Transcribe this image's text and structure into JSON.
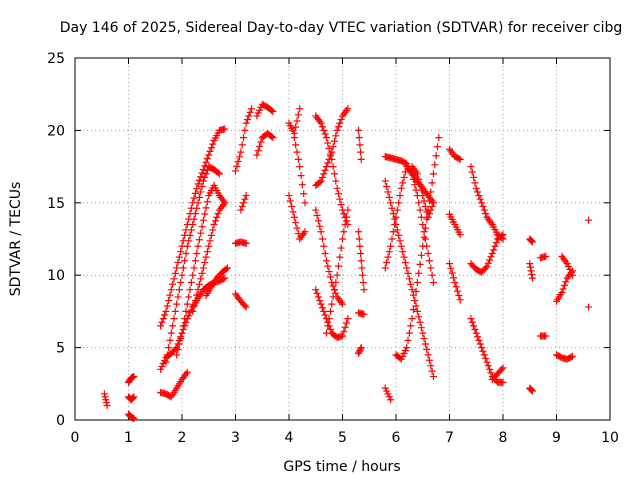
{
  "chart_data": {
    "type": "scatter",
    "title": "Day 146 of 2025, Sidereal Day-to-day VTEC variation (SDTVAR) for receiver cibg",
    "xlabel": "GPS time / hours",
    "ylabel": "SDTVAR / TECUs",
    "xlim": [
      0,
      10
    ],
    "ylim": [
      0,
      25
    ],
    "xticks": [
      0,
      1,
      2,
      3,
      4,
      5,
      6,
      7,
      8,
      9,
      10
    ],
    "yticks": [
      0,
      5,
      10,
      15,
      20,
      25
    ],
    "grid": true,
    "marker": "+",
    "color": "#ff0000",
    "series": [
      {
        "name": "s01",
        "x": [
          0.55,
          0.6
        ],
        "y": [
          1.8,
          1.0
        ]
      },
      {
        "name": "s02",
        "x": [
          1.0,
          1.05,
          1.1
        ],
        "y": [
          2.6,
          2.9,
          3.0
        ]
      },
      {
        "name": "s03",
        "x": [
          1.0,
          1.05,
          1.1
        ],
        "y": [
          1.6,
          1.4,
          1.6
        ]
      },
      {
        "name": "s04",
        "x": [
          1.0,
          1.05,
          1.1
        ],
        "y": [
          0.4,
          0.2,
          0.1
        ]
      },
      {
        "name": "s05",
        "x": [
          1.6,
          1.7,
          1.8,
          1.9,
          2.0,
          2.1
        ],
        "y": [
          1.9,
          1.8,
          1.6,
          2.2,
          2.8,
          3.3
        ]
      },
      {
        "name": "s06",
        "x": [
          1.6,
          1.7,
          1.8,
          1.9,
          2.0,
          2.1,
          2.2,
          2.3,
          2.4,
          2.5,
          2.6,
          2.7,
          2.8
        ],
        "y": [
          3.5,
          4.3,
          4.6,
          5.0,
          6.0,
          7.0,
          7.8,
          8.4,
          9.0,
          9.3,
          9.5,
          9.6,
          9.8
        ]
      },
      {
        "name": "s07",
        "x": [
          1.6,
          1.7,
          1.8,
          1.9,
          2.0,
          2.1,
          2.2,
          2.3,
          2.4,
          2.5,
          2.6,
          2.7,
          2.8
        ],
        "y": [
          6.5,
          7.5,
          9.0,
          10.5,
          12.0,
          13.5,
          15.0,
          16.3,
          17.3,
          18.3,
          19.3,
          20.0,
          20.1
        ]
      },
      {
        "name": "s08",
        "x": [
          1.7,
          1.8,
          1.9,
          2.0,
          2.1,
          2.2,
          2.3,
          2.4,
          2.5,
          2.6,
          2.7
        ],
        "y": [
          4.0,
          6.0,
          8.0,
          10.0,
          12.0,
          13.5,
          15.0,
          16.5,
          17.5,
          17.3,
          17.0
        ]
      },
      {
        "name": "s09",
        "x": [
          1.9,
          2.0,
          2.1,
          2.2,
          2.3,
          2.4,
          2.5,
          2.6,
          2.7,
          2.8
        ],
        "y": [
          4.5,
          6.0,
          8.0,
          10.0,
          12.0,
          13.8,
          15.5,
          16.2,
          15.5,
          15.0
        ]
      },
      {
        "name": "s10",
        "x": [
          2.2,
          2.3,
          2.4,
          2.5,
          2.6,
          2.7,
          2.8
        ],
        "y": [
          7.5,
          9.0,
          10.5,
          12.0,
          13.5,
          14.5,
          15.0
        ]
      },
      {
        "name": "s11",
        "x": [
          2.45,
          2.55,
          2.65,
          2.75,
          2.85
        ],
        "y": [
          8.6,
          9.2,
          9.8,
          10.2,
          10.5
        ]
      },
      {
        "name": "s12",
        "x": [
          3.0,
          3.1,
          3.2,
          3.3
        ],
        "y": [
          17.2,
          18.5,
          20.5,
          21.5
        ]
      },
      {
        "name": "s13",
        "x": [
          3.1,
          3.2
        ],
        "y": [
          14.5,
          15.5
        ]
      },
      {
        "name": "s14",
        "x": [
          3.0,
          3.1,
          3.2
        ],
        "y": [
          12.2,
          12.3,
          12.2
        ]
      },
      {
        "name": "s15",
        "x": [
          3.0,
          3.1,
          3.2
        ],
        "y": [
          8.7,
          8.2,
          7.8
        ]
      },
      {
        "name": "s16",
        "x": [
          3.4,
          3.5,
          3.6,
          3.7
        ],
        "y": [
          21.0,
          21.8,
          21.6,
          21.3
        ]
      },
      {
        "name": "s17",
        "x": [
          3.4,
          3.5,
          3.6,
          3.7
        ],
        "y": [
          18.3,
          19.5,
          19.8,
          19.5
        ]
      },
      {
        "name": "s18",
        "x": [
          4.0,
          4.1,
          4.2
        ],
        "y": [
          20.5,
          19.8,
          21.5
        ]
      },
      {
        "name": "s19",
        "x": [
          4.1,
          4.2,
          4.3
        ],
        "y": [
          19.5,
          17.5,
          15.0
        ]
      },
      {
        "name": "s20",
        "x": [
          4.0,
          4.1,
          4.2,
          4.3
        ],
        "y": [
          15.5,
          14.0,
          12.5,
          13.0
        ]
      },
      {
        "name": "s21",
        "x": [
          4.5,
          4.6,
          4.7,
          4.8,
          4.9,
          5.0,
          5.1
        ],
        "y": [
          21.0,
          20.5,
          19.5,
          18.0,
          16.0,
          14.5,
          13.5
        ]
      },
      {
        "name": "s22",
        "x": [
          4.5,
          4.6,
          4.7,
          4.8,
          4.9,
          5.0,
          5.1
        ],
        "y": [
          16.2,
          16.5,
          17.5,
          18.5,
          20.0,
          21.0,
          21.5
        ]
      },
      {
        "name": "s23",
        "x": [
          4.5,
          4.6,
          4.7,
          4.8,
          4.9,
          5.0
        ],
        "y": [
          14.5,
          13.0,
          11.0,
          9.5,
          8.5,
          8.0
        ]
      },
      {
        "name": "s24",
        "x": [
          4.5,
          4.6,
          4.7,
          4.8,
          4.9,
          5.0,
          5.1
        ],
        "y": [
          9.0,
          8.0,
          7.0,
          6.0,
          5.7,
          5.8,
          7.0
        ]
      },
      {
        "name": "s25",
        "x": [
          4.7,
          4.8,
          4.9,
          5.0,
          5.1
        ],
        "y": [
          6.0,
          8.0,
          10.0,
          12.5,
          14.5
        ]
      },
      {
        "name": "s26",
        "x": [
          5.3,
          5.35
        ],
        "y": [
          20.0,
          18.0
        ]
      },
      {
        "name": "s27",
        "x": [
          5.3,
          5.35,
          5.4
        ],
        "y": [
          13.0,
          11.0,
          9.0
        ]
      },
      {
        "name": "s28",
        "x": [
          5.3,
          5.4
        ],
        "y": [
          7.4,
          7.3
        ]
      },
      {
        "name": "s29",
        "x": [
          5.3,
          5.35
        ],
        "y": [
          4.6,
          5.0
        ]
      },
      {
        "name": "s30",
        "x": [
          5.8,
          5.9
        ],
        "y": [
          2.2,
          1.4
        ]
      },
      {
        "name": "s31",
        "x": [
          5.8,
          5.9,
          6.0,
          6.1,
          6.2,
          6.3,
          6.4,
          6.5,
          6.6,
          6.7
        ],
        "y": [
          16.5,
          15.0,
          13.5,
          12.0,
          10.5,
          9.0,
          7.5,
          6.0,
          4.5,
          3.0
        ]
      },
      {
        "name": "s32",
        "x": [
          5.8,
          5.9,
          6.0,
          6.1,
          6.2,
          6.3,
          6.4,
          6.5,
          6.6,
          6.7
        ],
        "y": [
          10.5,
          12.0,
          14.0,
          16.0,
          17.5,
          17.0,
          15.5,
          13.5,
          11.5,
          9.5
        ]
      },
      {
        "name": "s33",
        "x": [
          5.8,
          5.9,
          6.0,
          6.1,
          6.2,
          6.3,
          6.4,
          6.5,
          6.6,
          6.7
        ],
        "y": [
          18.2,
          18.1,
          18.0,
          17.9,
          17.7,
          17.0,
          16.5,
          16.0,
          15.5,
          15.0
        ]
      },
      {
        "name": "s34",
        "x": [
          6.0,
          6.1,
          6.2,
          6.3,
          6.4,
          6.5,
          6.6,
          6.7,
          6.8
        ],
        "y": [
          4.5,
          4.2,
          5.0,
          7.0,
          9.5,
          12.0,
          14.5,
          17.0,
          19.5
        ]
      },
      {
        "name": "s35",
        "x": [
          6.3,
          6.4,
          6.5,
          6.6,
          6.7
        ],
        "y": [
          17.5,
          17.0,
          15.5,
          14.0,
          15.0
        ]
      },
      {
        "name": "s36",
        "x": [
          7.0,
          7.1,
          7.2
        ],
        "y": [
          18.7,
          18.2,
          18.0
        ]
      },
      {
        "name": "s37",
        "x": [
          7.0,
          7.1,
          7.2
        ],
        "y": [
          14.2,
          13.5,
          12.8
        ]
      },
      {
        "name": "s38",
        "x": [
          7.0,
          7.1,
          7.2
        ],
        "y": [
          10.8,
          9.5,
          8.3
        ]
      },
      {
        "name": "s39",
        "x": [
          7.4,
          7.5,
          7.6,
          7.7,
          7.8,
          7.9,
          8.0
        ],
        "y": [
          17.5,
          16.0,
          15.0,
          14.0,
          13.5,
          12.8,
          12.5
        ]
      },
      {
        "name": "s40",
        "x": [
          7.4,
          7.5,
          7.6,
          7.7,
          7.8,
          7.9,
          8.0
        ],
        "y": [
          10.8,
          10.4,
          10.2,
          10.6,
          11.5,
          12.5,
          12.8
        ]
      },
      {
        "name": "s41",
        "x": [
          7.4,
          7.5,
          7.6,
          7.7,
          7.8,
          7.9,
          8.0
        ],
        "y": [
          7.0,
          6.0,
          5.0,
          4.0,
          3.0,
          2.6,
          2.6
        ]
      },
      {
        "name": "s42",
        "x": [
          7.8,
          7.9,
          8.0
        ],
        "y": [
          2.8,
          3.2,
          3.6
        ]
      },
      {
        "name": "s43",
        "x": [
          8.5,
          8.55
        ],
        "y": [
          12.5,
          12.3
        ]
      },
      {
        "name": "s44",
        "x": [
          8.5,
          8.55
        ],
        "y": [
          10.8,
          9.8
        ]
      },
      {
        "name": "s45",
        "x": [
          8.5,
          8.55
        ],
        "y": [
          2.2,
          2.0
        ]
      },
      {
        "name": "s46",
        "x": [
          8.7,
          8.8
        ],
        "y": [
          11.2,
          11.3
        ]
      },
      {
        "name": "s47",
        "x": [
          8.7,
          8.8
        ],
        "y": [
          5.8,
          5.8
        ]
      },
      {
        "name": "s48",
        "x": [
          9.0,
          9.1,
          9.2,
          9.3
        ],
        "y": [
          8.2,
          8.8,
          9.8,
          10.3
        ]
      },
      {
        "name": "s49",
        "x": [
          9.1,
          9.2,
          9.3
        ],
        "y": [
          11.3,
          10.8,
          10.0
        ]
      },
      {
        "name": "s50",
        "x": [
          9.0,
          9.1,
          9.2,
          9.3
        ],
        "y": [
          4.5,
          4.3,
          4.2,
          4.4
        ]
      },
      {
        "name": "s51",
        "x": [
          9.6
        ],
        "y": [
          13.8
        ]
      },
      {
        "name": "s52",
        "x": [
          9.6
        ],
        "y": [
          7.8
        ]
      }
    ]
  }
}
